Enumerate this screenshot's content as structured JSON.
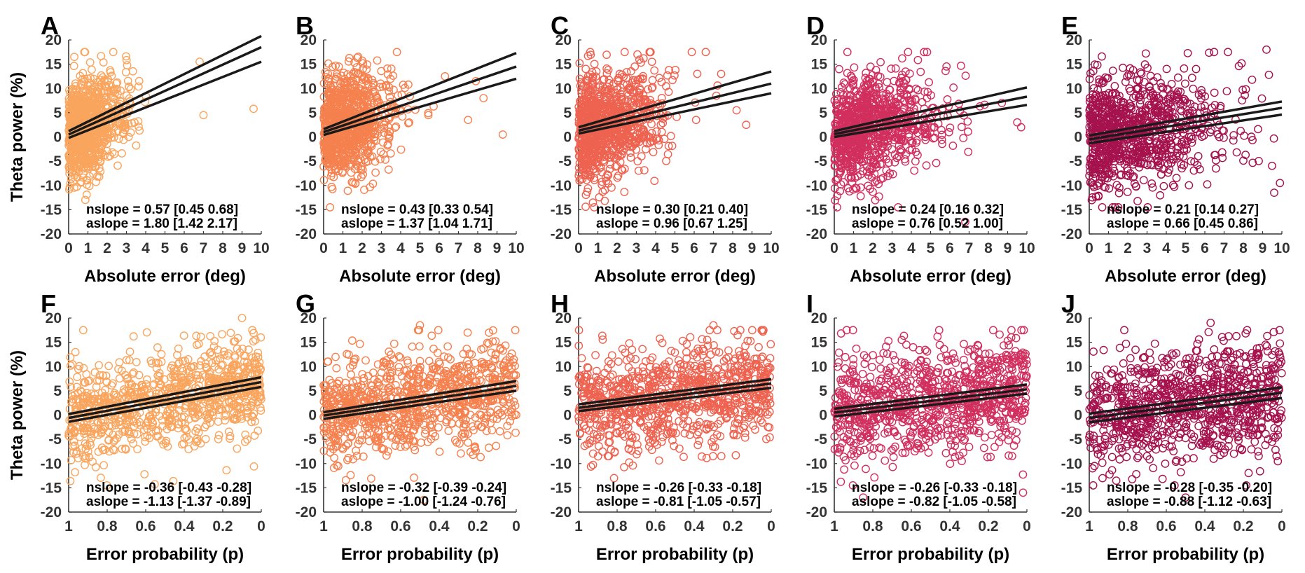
{
  "figure": {
    "y_axis_label": "Theta power (%)",
    "x_axis_label_top": "Absolute error (deg)",
    "x_axis_label_bottom": "Error probability (p)"
  },
  "chart_data": [
    {
      "panel": "A",
      "type": "scatter",
      "color": "#f9a55e",
      "xlabel": "Absolute error (deg)",
      "ylabel": "Theta power (%)",
      "xlim": [
        0,
        10
      ],
      "ylim": [
        -20,
        20
      ],
      "x_reversed": false,
      "xticks": [
        0,
        1,
        2,
        3,
        4,
        5,
        6,
        7,
        8,
        9,
        10
      ],
      "yticks": [
        -20,
        -15,
        -10,
        -5,
        0,
        5,
        10,
        15,
        20
      ],
      "cloud": {
        "n": 900,
        "x_min": 0,
        "x_max": 4.2,
        "x_mode": "abs",
        "x_spread": 1.3,
        "y_sd": 5.0,
        "seed": 11
      },
      "extra_points": [
        [
          7.0,
          4.5
        ],
        [
          9.6,
          5.8
        ],
        [
          6.8,
          15.5
        ]
      ],
      "fit": {
        "x": [
          0,
          10
        ],
        "mid": [
          0.5,
          18.5
        ],
        "upper": [
          1.2,
          20.8
        ],
        "lower": [
          -0.2,
          15.5
        ]
      },
      "nslope_label": "nslope = 0.57 [0.45 0.68]",
      "aslope_label": "aslope = 1.80 [1.42 2.17]"
    },
    {
      "panel": "B",
      "type": "scatter",
      "color": "#f5814f",
      "xlabel": "Absolute error (deg)",
      "ylabel": "Theta power (%)",
      "xlim": [
        0,
        10
      ],
      "ylim": [
        -20,
        20
      ],
      "x_reversed": false,
      "xticks": [
        0,
        1,
        2,
        3,
        4,
        5,
        6,
        7,
        8,
        9,
        10
      ],
      "yticks": [
        -20,
        -15,
        -10,
        -5,
        0,
        5,
        10,
        15,
        20
      ],
      "cloud": {
        "n": 900,
        "x_min": 0,
        "x_max": 6.2,
        "x_mode": "abs",
        "x_spread": 1.6,
        "y_sd": 5.2,
        "seed": 22
      },
      "extra_points": [
        [
          7.5,
          3.5
        ],
        [
          8.3,
          8.0
        ],
        [
          9.3,
          0.5
        ],
        [
          7.9,
          11.5
        ],
        [
          6.3,
          12.5
        ]
      ],
      "fit": {
        "x": [
          0,
          10
        ],
        "mid": [
          1.0,
          14.5
        ],
        "upper": [
          1.6,
          17.3
        ],
        "lower": [
          0.4,
          12.0
        ]
      },
      "nslope_label": "nslope = 0.43 [0.33 0.54]",
      "aslope_label": "aslope = 1.37 [1.04 1.71]"
    },
    {
      "panel": "C",
      "type": "scatter",
      "color": "#ee6250",
      "xlabel": "Absolute error (deg)",
      "ylabel": "Theta power (%)",
      "xlim": [
        0,
        10
      ],
      "ylim": [
        -20,
        20
      ],
      "x_reversed": false,
      "xticks": [
        0,
        1,
        2,
        3,
        4,
        5,
        6,
        7,
        8,
        9,
        10
      ],
      "yticks": [
        -20,
        -15,
        -10,
        -5,
        0,
        5,
        10,
        15,
        20
      ],
      "cloud": {
        "n": 900,
        "x_min": 0,
        "x_max": 8.0,
        "x_mode": "abs",
        "x_spread": 2.0,
        "y_sd": 5.5,
        "seed": 33
      },
      "extra_points": [
        [
          8.7,
          2.5
        ],
        [
          8.2,
          5.5
        ],
        [
          6.6,
          17.5
        ],
        [
          7.4,
          13.0
        ]
      ],
      "fit": {
        "x": [
          0,
          10
        ],
        "mid": [
          1.3,
          11.0
        ],
        "upper": [
          2.0,
          13.5
        ],
        "lower": [
          0.7,
          9.0
        ]
      },
      "nslope_label": "nslope = 0.30 [0.21 0.40]",
      "aslope_label": "aslope = 0.96 [0.67 1.25]"
    },
    {
      "panel": "D",
      "type": "scatter",
      "color": "#d12f5e",
      "xlabel": "Absolute error (deg)",
      "ylabel": "Theta power (%)",
      "xlim": [
        0,
        10
      ],
      "ylim": [
        -20,
        20
      ],
      "x_reversed": false,
      "xticks": [
        0,
        1,
        2,
        3,
        4,
        5,
        6,
        7,
        8,
        9,
        10
      ],
      "yticks": [
        -20,
        -15,
        -10,
        -5,
        0,
        5,
        10,
        15,
        20
      ],
      "cloud": {
        "n": 900,
        "x_min": 0,
        "x_max": 9.0,
        "x_mode": "abs",
        "x_spread": 2.6,
        "y_sd": 5.5,
        "seed": 44
      },
      "extra_points": [
        [
          9.5,
          3.0
        ],
        [
          9.7,
          2.0
        ],
        [
          6.8,
          -17.5
        ],
        [
          8.7,
          7.0
        ]
      ],
      "fit": {
        "x": [
          0,
          10
        ],
        "mid": [
          0.6,
          8.3
        ],
        "upper": [
          1.2,
          10.2
        ],
        "lower": [
          0.0,
          6.6
        ]
      },
      "nslope_label": "nslope = 0.24 [0.16 0.32]",
      "aslope_label": "aslope = 0.76 [0.52 1.00]"
    },
    {
      "panel": "E",
      "type": "scatter",
      "color": "#a5124d",
      "xlabel": "Absolute error (deg)",
      "ylabel": "Theta power (%)",
      "xlim": [
        0,
        10
      ],
      "ylim": [
        -20,
        20
      ],
      "x_reversed": false,
      "xticks": [
        0,
        1,
        2,
        3,
        4,
        5,
        6,
        7,
        8,
        9,
        10
      ],
      "yticks": [
        -20,
        -15,
        -10,
        -5,
        0,
        5,
        10,
        15,
        20
      ],
      "cloud": {
        "n": 900,
        "x_min": 0,
        "x_max": 10,
        "x_mode": "abs",
        "x_spread": 3.2,
        "y_sd": 5.8,
        "seed": 55
      },
      "extra_points": [
        [
          9.9,
          -9.5
        ],
        [
          9.6,
          -11.5
        ],
        [
          9.2,
          18.0
        ]
      ],
      "fit": {
        "x": [
          0,
          10
        ],
        "mid": [
          -0.5,
          6.0
        ],
        "upper": [
          0.3,
          7.3
        ],
        "lower": [
          -1.3,
          4.6
        ]
      },
      "nslope_label": "nslope = 0.21 [0.14 0.27]",
      "aslope_label": "aslope = 0.66 [0.45 0.86]"
    },
    {
      "panel": "F",
      "type": "scatter",
      "color": "#f9a55e",
      "xlabel": "Error probability (p)",
      "ylabel": "Theta power (%)",
      "xlim": [
        1,
        0
      ],
      "ylim": [
        -20,
        20
      ],
      "x_reversed": true,
      "xticks": [
        1,
        0.8,
        0.6,
        0.4,
        0.2,
        0
      ],
      "yticks": [
        -20,
        -15,
        -10,
        -5,
        0,
        5,
        10,
        15,
        20
      ],
      "cloud": {
        "n": 900,
        "x_min": 0,
        "x_max": 1,
        "x_mode": "uniform",
        "y_sd": 5.0,
        "seed": 66,
        "y_fit_follow": true
      },
      "extra_points": [
        [
          0.1,
          20.0
        ],
        [
          0.03,
          15.5
        ]
      ],
      "fit": {
        "x": [
          1,
          0
        ],
        "mid": [
          -0.6,
          6.8
        ],
        "upper": [
          0.2,
          7.8
        ],
        "lower": [
          -1.4,
          5.8
        ]
      },
      "nslope_label": "nslope = -0.36 [-0.43 -0.28]",
      "aslope_label": "aslope = -1.13 [-1.37 -0.89]"
    },
    {
      "panel": "G",
      "type": "scatter",
      "color": "#f5814f",
      "xlabel": "Error probability (p)",
      "ylabel": "Theta power (%)",
      "xlim": [
        1,
        0
      ],
      "ylim": [
        -20,
        20
      ],
      "x_reversed": true,
      "xticks": [
        1,
        0.8,
        0.6,
        0.4,
        0.2,
        0
      ],
      "yticks": [
        -20,
        -15,
        -10,
        -5,
        0,
        5,
        10,
        15,
        20
      ],
      "cloud": {
        "n": 900,
        "x_min": 0,
        "x_max": 1,
        "x_mode": "uniform",
        "y_sd": 5.2,
        "seed": 77,
        "y_fit_follow": true
      },
      "extra_points": [
        [
          0.48,
          -17.5
        ],
        [
          0.5,
          18.5
        ]
      ],
      "fit": {
        "x": [
          1,
          0
        ],
        "mid": [
          -0.1,
          6.0
        ],
        "upper": [
          0.6,
          7.0
        ],
        "lower": [
          -0.8,
          5.0
        ]
      },
      "nslope_label": "nslope = -0.32 [-0.39 -0.24]",
      "aslope_label": "aslope = -1.00 [-1.24 -0.76]"
    },
    {
      "panel": "H",
      "type": "scatter",
      "color": "#ee6250",
      "xlabel": "Error probability (p)",
      "ylabel": "Theta power (%)",
      "xlim": [
        1,
        0
      ],
      "ylim": [
        -20,
        20
      ],
      "x_reversed": true,
      "xticks": [
        1,
        0.8,
        0.6,
        0.4,
        0.2,
        0
      ],
      "yticks": [
        -20,
        -15,
        -10,
        -5,
        0,
        5,
        10,
        15,
        20
      ],
      "cloud": {
        "n": 900,
        "x_min": 0,
        "x_max": 1,
        "x_mode": "uniform",
        "y_sd": 5.3,
        "seed": 88,
        "y_fit_follow": true
      },
      "extra_points": [
        [
          0.3,
          18.5
        ],
        [
          0.28,
          17.5
        ]
      ],
      "fit": {
        "x": [
          1,
          0
        ],
        "mid": [
          1.5,
          6.5
        ],
        "upper": [
          2.2,
          7.4
        ],
        "lower": [
          0.8,
          5.6
        ]
      },
      "nslope_label": "nslope = -0.26 [-0.33 -0.18]",
      "aslope_label": "aslope = -0.81 [-1.05 -0.57]"
    },
    {
      "panel": "I",
      "type": "scatter",
      "color": "#d12f5e",
      "xlabel": "Error probability (p)",
      "ylabel": "Theta power (%)",
      "xlim": [
        1,
        0
      ],
      "ylim": [
        -20,
        20
      ],
      "x_reversed": true,
      "xticks": [
        1,
        0.8,
        0.6,
        0.4,
        0.2,
        0
      ],
      "yticks": [
        -20,
        -15,
        -10,
        -5,
        0,
        5,
        10,
        15,
        20
      ],
      "cloud": {
        "n": 900,
        "x_min": 0,
        "x_max": 1,
        "x_mode": "uniform",
        "y_sd": 5.5,
        "seed": 99,
        "y_fit_follow": true
      },
      "extra_points": [
        [
          0.85,
          -17.0
        ],
        [
          0.02,
          -16.0
        ]
      ],
      "fit": {
        "x": [
          1,
          0
        ],
        "mid": [
          0.5,
          5.3
        ],
        "upper": [
          1.3,
          6.3
        ],
        "lower": [
          -0.3,
          4.4
        ]
      },
      "nslope_label": "nslope = -0.26 [-0.33 -0.18]",
      "aslope_label": "aslope = -0.82 [-1.05 -0.58]"
    },
    {
      "panel": "J",
      "type": "scatter",
      "color": "#a5124d",
      "xlabel": "Error probability (p)",
      "ylabel": "Theta power (%)",
      "xlim": [
        1,
        0
      ],
      "ylim": [
        -20,
        20
      ],
      "x_reversed": true,
      "xticks": [
        1,
        0.8,
        0.6,
        0.4,
        0.2,
        0
      ],
      "yticks": [
        -20,
        -15,
        -10,
        -5,
        0,
        5,
        10,
        15,
        20
      ],
      "cloud": {
        "n": 900,
        "x_min": 0,
        "x_max": 1,
        "x_mode": "uniform",
        "y_sd": 5.8,
        "seed": 111,
        "y_fit_follow": true
      },
      "extra_points": [
        [
          0.37,
          19.0
        ],
        [
          0.5,
          -17.0
        ]
      ],
      "fit": {
        "x": [
          1,
          0
        ],
        "mid": [
          -0.6,
          4.6
        ],
        "upper": [
          0.3,
          5.7
        ],
        "lower": [
          -1.5,
          3.5
        ]
      },
      "nslope_label": "nslope = -0.28 [-0.35 -0.20]",
      "aslope_label": "aslope = -0.88 [-1.12 -0.63]"
    }
  ]
}
